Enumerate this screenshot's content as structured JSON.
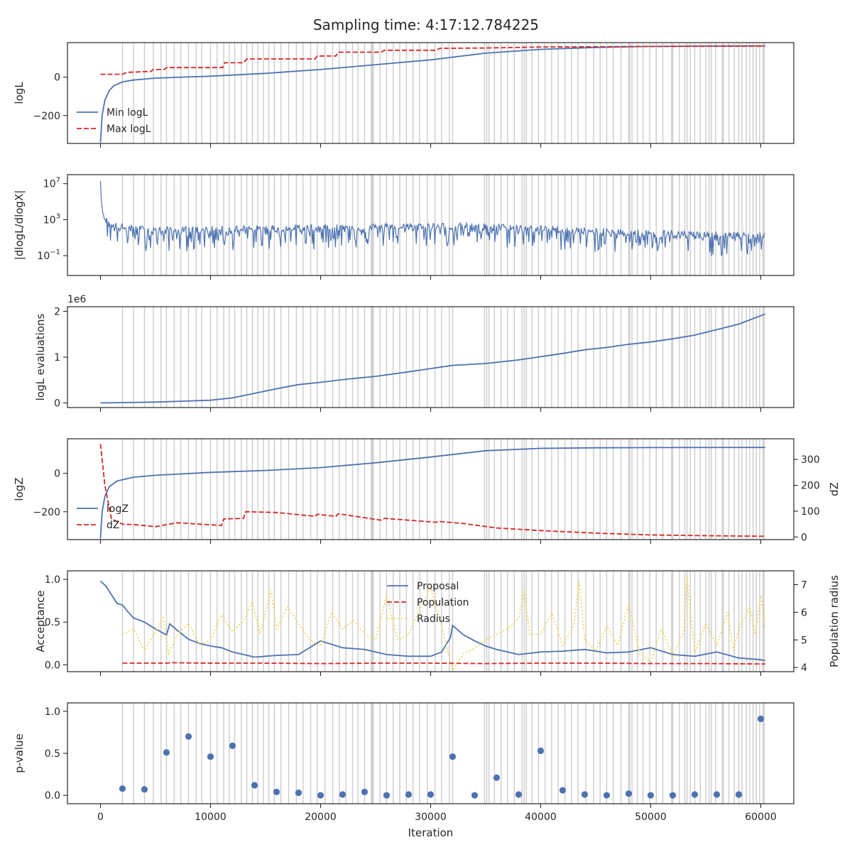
{
  "figure": {
    "title": "Sampling time: 4:17:12.784225"
  },
  "colors": {
    "blue": "#4C72B0",
    "red": "#D62728",
    "yellow": "#F2D33C",
    "grid": "#cccccc",
    "axis": "#262626"
  },
  "chart_data": [
    {
      "id": "logl",
      "type": "line",
      "ylabel": "logL",
      "ylim": [
        -345,
        180
      ],
      "yticks": [
        {
          "v": 0,
          "label": "0"
        },
        {
          "v": -200,
          "label": "−200"
        }
      ],
      "legend_position": "lower-left",
      "series": [
        {
          "name": "Min logL",
          "style": "solid",
          "color": "blue",
          "x": [
            0,
            150,
            400,
            800,
            1200,
            2000,
            3000,
            5000,
            10000,
            15000,
            20000,
            25000,
            30000,
            35000,
            40000,
            45000,
            50000,
            55000,
            60400
          ],
          "y": [
            -340,
            -200,
            -120,
            -70,
            -45,
            -25,
            -15,
            -5,
            5,
            20,
            40,
            65,
            90,
            125,
            145,
            155,
            160,
            162,
            163
          ]
        },
        {
          "name": "Max logL",
          "style": "dashed",
          "color": "red",
          "x": [
            0,
            2000,
            2400,
            4600,
            4800,
            5800,
            6000,
            11100,
            11300,
            13000,
            13300,
            19500,
            19700,
            21400,
            21600,
            25500,
            25800,
            30500,
            30800,
            35000,
            40000,
            50000,
            60400
          ],
          "y": [
            15,
            15,
            25,
            30,
            40,
            40,
            50,
            50,
            75,
            75,
            95,
            95,
            110,
            110,
            130,
            130,
            140,
            140,
            150,
            152,
            157,
            160,
            162
          ]
        }
      ]
    },
    {
      "id": "dlogl",
      "type": "line",
      "ylabel": "|dlogL/dlogX|",
      "yscale": "log",
      "ylim_log10": [
        -3.2,
        8
      ],
      "yticks": [
        {
          "exp": 7
        },
        {
          "exp": 3
        },
        {
          "exp": -1
        }
      ],
      "series": [
        {
          "name": "",
          "style": "solid",
          "color": "blue",
          "x": [
            0,
            50,
            200,
            500,
            1000,
            3000,
            6000,
            10000,
            15000,
            20000,
            25000,
            30000,
            35000,
            40000,
            45000,
            50000,
            55000,
            60400
          ],
          "y_log10": [
            7.3,
            5.5,
            3.8,
            2.8,
            2.2,
            1.8,
            1.6,
            1.7,
            1.8,
            1.9,
            2.0,
            2.1,
            2.0,
            1.8,
            1.5,
            1.3,
            1.1,
            1.0
          ],
          "noise_upper": 0.6,
          "noise_lower": 2.2
        }
      ]
    },
    {
      "id": "evals",
      "type": "line",
      "ylabel": "logL evaluations",
      "offset_text": "1e6",
      "ylim": [
        -0.1,
        2.1
      ],
      "yticks": [
        {
          "v": 0,
          "label": "0"
        },
        {
          "v": 1,
          "label": "1"
        },
        {
          "v": 2,
          "label": "2"
        }
      ],
      "series": [
        {
          "name": "",
          "style": "solid",
          "color": "blue",
          "x": [
            0,
            5000,
            10000,
            12000,
            14000,
            16000,
            18000,
            20000,
            22000,
            25000,
            28000,
            30000,
            32000,
            35000,
            38000,
            40000,
            42000,
            44000,
            46000,
            48000,
            50000,
            52000,
            54000,
            56000,
            58000,
            60400
          ],
          "y": [
            0.0,
            0.02,
            0.06,
            0.11,
            0.21,
            0.31,
            0.4,
            0.45,
            0.51,
            0.58,
            0.68,
            0.75,
            0.82,
            0.86,
            0.94,
            1.01,
            1.08,
            1.16,
            1.21,
            1.28,
            1.33,
            1.4,
            1.48,
            1.6,
            1.72,
            1.94
          ]
        }
      ]
    },
    {
      "id": "logz",
      "type": "line",
      "ylabel": "logZ",
      "ylabel_right": "dZ",
      "ylim": [
        -345,
        180
      ],
      "yticks": [
        {
          "v": 0,
          "label": "0"
        },
        {
          "v": -200,
          "label": "−200"
        }
      ],
      "ylim_right": [
        -10,
        380
      ],
      "yticks_right": [
        0,
        100,
        200,
        300
      ],
      "legend_position": "lower-left",
      "series": [
        {
          "name": "logZ",
          "style": "solid",
          "color": "blue",
          "axis": "left",
          "x": [
            0,
            150,
            400,
            800,
            1500,
            3000,
            5000,
            10000,
            15000,
            20000,
            25000,
            30000,
            35000,
            40000,
            45000,
            50000,
            60400
          ],
          "y": [
            -340,
            -200,
            -120,
            -70,
            -40,
            -20,
            -10,
            5,
            15,
            30,
            55,
            85,
            118,
            130,
            133,
            134,
            135
          ]
        },
        {
          "name": "dZ",
          "style": "dashed",
          "color": "red",
          "axis": "right",
          "x": [
            0,
            400,
            1000,
            2000,
            3000,
            4000,
            5000,
            6000,
            7000,
            9000,
            11000,
            11200,
            13000,
            13200,
            16000,
            19500,
            19700,
            21400,
            21600,
            25500,
            25800,
            28000,
            30500,
            30800,
            33000,
            36000,
            40000,
            45000,
            50000,
            55000,
            60400
          ],
          "y": [
            360,
            200,
            70,
            50,
            48,
            44,
            40,
            48,
            55,
            50,
            45,
            70,
            72,
            98,
            95,
            80,
            88,
            80,
            90,
            65,
            72,
            65,
            57,
            60,
            52,
            35,
            25,
            15,
            8,
            5,
            3
          ]
        }
      ]
    },
    {
      "id": "accept",
      "type": "line",
      "ylabel": "Acceptance",
      "ylabel_right": "Population radius",
      "ylim": [
        -0.08,
        1.1
      ],
      "yticks": [
        {
          "v": 0,
          "label": "0.0"
        },
        {
          "v": 0.5,
          "label": "0.5"
        },
        {
          "v": 1,
          "label": "1.0"
        }
      ],
      "ylim_right": [
        3.85,
        7.5
      ],
      "yticks_right": [
        4,
        5,
        6,
        7
      ],
      "legend_position": "upper-center",
      "series": [
        {
          "name": "Proposal",
          "style": "solid",
          "color": "blue",
          "axis": "left",
          "x": [
            0,
            500,
            1000,
            1500,
            2000,
            2500,
            3000,
            4000,
            5000,
            6000,
            6300,
            7000,
            8000,
            9000,
            10000,
            11000,
            12000,
            13000,
            14000,
            15000,
            16000,
            18000,
            20000,
            22000,
            24000,
            26000,
            28000,
            30000,
            31000,
            31800,
            32000,
            33000,
            34000,
            35000,
            36000,
            38000,
            40000,
            42000,
            44000,
            46000,
            48000,
            50000,
            52000,
            54000,
            56000,
            58000,
            60000,
            60400
          ],
          "y": [
            0.98,
            0.92,
            0.82,
            0.72,
            0.7,
            0.62,
            0.55,
            0.5,
            0.42,
            0.35,
            0.48,
            0.4,
            0.3,
            0.25,
            0.22,
            0.2,
            0.15,
            0.12,
            0.09,
            0.1,
            0.11,
            0.12,
            0.28,
            0.2,
            0.18,
            0.12,
            0.1,
            0.1,
            0.15,
            0.32,
            0.46,
            0.35,
            0.28,
            0.22,
            0.18,
            0.12,
            0.15,
            0.16,
            0.18,
            0.14,
            0.15,
            0.2,
            0.12,
            0.1,
            0.15,
            0.08,
            0.06,
            0.05
          ]
        },
        {
          "name": "Population",
          "style": "dashed",
          "color": "red",
          "axis": "left",
          "x": [
            2000,
            6000,
            6500,
            10000,
            15000,
            20000,
            25000,
            30000,
            35000,
            40000,
            45000,
            50000,
            55000,
            60400
          ],
          "y": [
            0.02,
            0.02,
            0.025,
            0.02,
            0.02,
            0.015,
            0.02,
            0.02,
            0.015,
            0.02,
            0.02,
            0.015,
            0.015,
            0.01
          ]
        },
        {
          "name": "Radius",
          "style": "dotted",
          "color": "yellow",
          "axis": "right",
          "x": [
            2000,
            3000,
            4000,
            5000,
            5700,
            6200,
            7000,
            8000,
            9000,
            10000,
            11000,
            12000,
            13000,
            13800,
            14500,
            15500,
            16000,
            17000,
            18000,
            19000,
            20000,
            21000,
            22000,
            23000,
            24000,
            25000,
            26000,
            27000,
            28000,
            29000,
            30000,
            31000,
            32000,
            33000,
            34000,
            35000,
            36000,
            37000,
            38000,
            38500,
            39000,
            40000,
            41000,
            42000,
            43000,
            43500,
            44000,
            45000,
            46000,
            47000,
            48000,
            49000,
            50000,
            51000,
            52000,
            53000,
            53300,
            54000,
            55000,
            56000,
            57000,
            57500,
            58000,
            59000,
            59500,
            60000,
            60400
          ],
          "y": [
            5.2,
            5.4,
            4.6,
            5.3,
            5.8,
            4.5,
            5.2,
            5.6,
            4.8,
            5.0,
            5.9,
            5.3,
            5.7,
            6.4,
            5.2,
            6.8,
            5.4,
            6.2,
            5.6,
            5.0,
            4.8,
            6.0,
            5.4,
            5.7,
            5.2,
            5.0,
            6.6,
            5.0,
            5.2,
            6.1,
            6.9,
            5.5,
            3.9,
            4.5,
            4.7,
            5.0,
            5.2,
            5.4,
            5.8,
            6.8,
            5.2,
            5.2,
            6.0,
            4.8,
            5.5,
            7.1,
            5.0,
            4.6,
            5.5,
            4.8,
            6.3,
            4.5,
            4.2,
            5.4,
            4.4,
            5.3,
            7.3,
            4.5,
            5.6,
            4.8,
            6.0,
            4.6,
            5.4,
            6.2,
            5.2,
            6.6,
            5.4
          ]
        }
      ]
    },
    {
      "id": "pvalue",
      "type": "scatter",
      "ylabel": "p-value",
      "xlabel": "Iteration",
      "ylim": [
        -0.1,
        1.1
      ],
      "yticks": [
        {
          "v": 0,
          "label": "0.0"
        },
        {
          "v": 0.5,
          "label": "0.5"
        },
        {
          "v": 1,
          "label": "1.0"
        }
      ],
      "series": [
        {
          "name": "",
          "color": "blue",
          "x": [
            2000,
            4000,
            6000,
            8000,
            10000,
            12000,
            14000,
            16000,
            18000,
            20000,
            22000,
            24000,
            26000,
            28000,
            30000,
            32000,
            34000,
            36000,
            38000,
            40000,
            42000,
            44000,
            46000,
            48000,
            50000,
            52000,
            54000,
            56000,
            58000,
            60000
          ],
          "y": [
            0.08,
            0.07,
            0.51,
            0.7,
            0.46,
            0.59,
            0.12,
            0.04,
            0.03,
            0.0,
            0.01,
            0.04,
            0.0,
            0.01,
            0.01,
            0.46,
            0.0,
            0.21,
            0.01,
            0.53,
            0.06,
            0.01,
            0.0,
            0.02,
            0.0,
            0.0,
            0.01,
            0.01,
            0.01,
            0.91
          ]
        }
      ]
    }
  ],
  "shared": {
    "xlim": [
      -3000,
      63000
    ],
    "xticks": [
      0,
      10000,
      20000,
      30000,
      40000,
      50000,
      60000
    ],
    "vlines": [
      2000,
      3000,
      4000,
      4800,
      5500,
      6000,
      6700,
      7300,
      8000,
      8700,
      9200,
      10000,
      10600,
      11200,
      11700,
      12200,
      12800,
      13300,
      13800,
      14300,
      14800,
      15300,
      15800,
      16400,
      17100,
      17800,
      18400,
      19100,
      19700,
      20400,
      21100,
      21700,
      22300,
      22900,
      23400,
      24000,
      24600,
      24700,
      24800,
      25400,
      26000,
      26600,
      27200,
      27800,
      28400,
      29000,
      29700,
      30400,
      31000,
      31700,
      32000,
      34900,
      35100,
      35300,
      35800,
      36400,
      37000,
      37600,
      38300,
      38500,
      38700,
      39200,
      39800,
      40400,
      41000,
      41600,
      42200,
      42800,
      43400,
      44100,
      44800,
      45400,
      46000,
      46600,
      47300,
      48000,
      48100,
      48300,
      48800,
      49300,
      49900,
      50500,
      51100,
      51900,
      52000,
      52600,
      53100,
      53300,
      53600,
      54000,
      54500,
      55000,
      55300,
      55500,
      55900,
      56500,
      56600,
      57100,
      57600,
      58000,
      58300,
      58700,
      59000,
      59300,
      59600,
      59900,
      60200,
      60300
    ]
  }
}
